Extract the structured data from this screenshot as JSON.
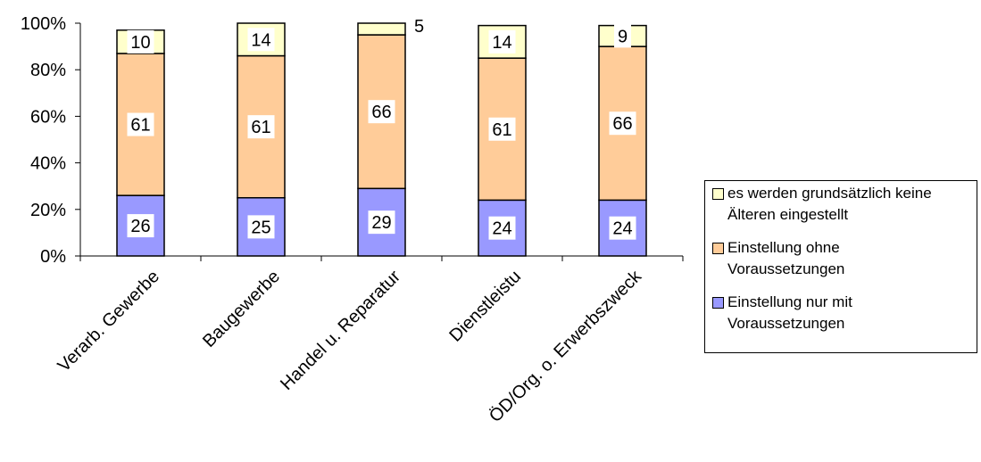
{
  "chart_data": {
    "type": "bar",
    "stacked": true,
    "categories": [
      "Verarb. Gewerbe",
      "Baugewerbe",
      "Handel u. Reparatur",
      "Dienstleistu",
      "ÖD/Org. o. Erwerbszweck"
    ],
    "series": [
      {
        "name": "Einstellung nur mit Voraussetzungen",
        "color": "#9999ff",
        "values": [
          26,
          25,
          29,
          24,
          24
        ]
      },
      {
        "name": "Einstellung ohne Voraussetzungen",
        "color": "#ffcc99",
        "values": [
          61,
          61,
          66,
          61,
          66
        ]
      },
      {
        "name": "es werden grundsätzlich keine Älteren eingestellt",
        "color": "#ffffcc",
        "values": [
          10,
          14,
          5,
          14,
          9
        ]
      }
    ],
    "yticks": [
      "0%",
      "20%",
      "40%",
      "60%",
      "80%",
      "100%"
    ],
    "ylim": [
      0,
      100
    ],
    "legend_position": "right",
    "legend_order": [
      2,
      1,
      0
    ],
    "legend_lines": [
      [
        "es werden grundsätzlich keine",
        "Älteren eingestellt"
      ],
      [
        "Einstellung ohne",
        "Voraussetzungen"
      ],
      [
        "Einstellung nur mit",
        "Voraussetzungen"
      ]
    ]
  }
}
